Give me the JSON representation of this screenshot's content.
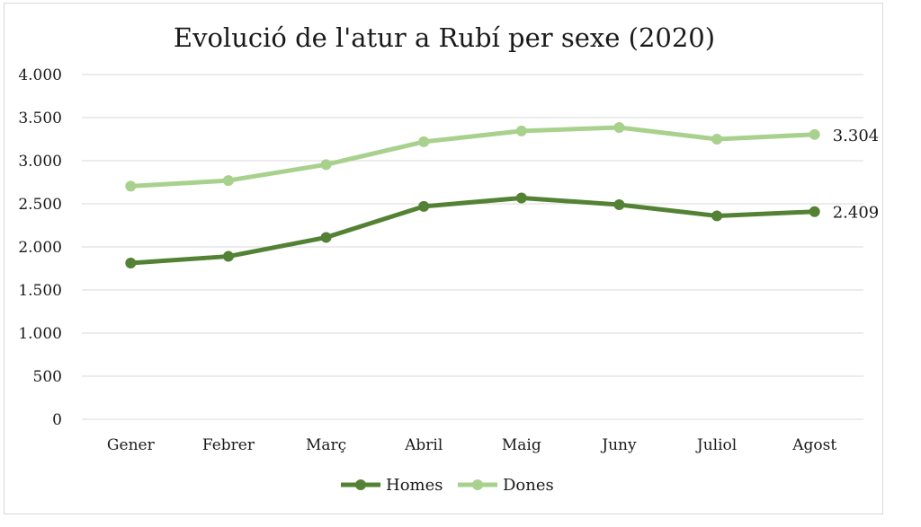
{
  "chart_data": {
    "type": "line",
    "title": "Evolució de l'atur a Rubí per sexe (2020)",
    "xlabel": "",
    "ylabel": "",
    "categories": [
      "Gener",
      "Febrer",
      "Març",
      "Abril",
      "Maig",
      "Juny",
      "Juliol",
      "Agost"
    ],
    "ylim": [
      0,
      4000
    ],
    "yticks": [
      {
        "value": 0,
        "label": "0"
      },
      {
        "value": 500,
        "label": "500"
      },
      {
        "value": 1000,
        "label": "1.000"
      },
      {
        "value": 1500,
        "label": "1.500"
      },
      {
        "value": 2000,
        "label": "2.000"
      },
      {
        "value": 2500,
        "label": "2.500"
      },
      {
        "value": 3000,
        "label": "3.000"
      },
      {
        "value": 3500,
        "label": "3.500"
      },
      {
        "value": 4000,
        "label": "4.000"
      }
    ],
    "grid": true,
    "legend_position": "bottom",
    "series": [
      {
        "name": "Homes",
        "color": "#548235",
        "values": [
          1812,
          1890,
          2110,
          2470,
          2568,
          2490,
          2360,
          2409
        ],
        "end_label": "2.409"
      },
      {
        "name": "Dones",
        "color": "#a9d18e",
        "values": [
          2705,
          2770,
          2955,
          3220,
          3345,
          3385,
          3250,
          3304
        ],
        "end_label": "3.304"
      }
    ]
  }
}
